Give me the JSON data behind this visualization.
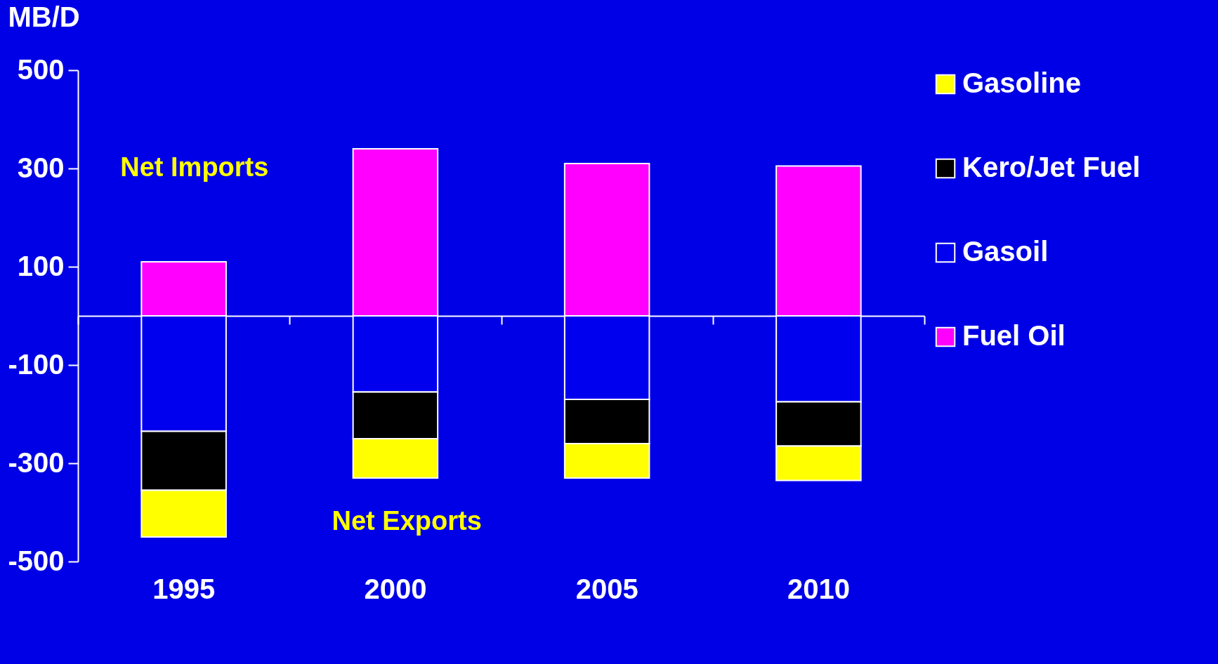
{
  "chart_data": {
    "type": "bar",
    "stacked": true,
    "ylabel": "MB/D",
    "categories": [
      "1995",
      "2000",
      "2005",
      "2010"
    ],
    "series": [
      {
        "name": "Fuel Oil",
        "color": "#ff00ff",
        "values": [
          110,
          340,
          310,
          305
        ]
      },
      {
        "name": "Gasoil",
        "color": "#0000ee",
        "values": [
          -235,
          -155,
          -170,
          -175
        ]
      },
      {
        "name": "Kero/Jet Fuel",
        "color": "#000000",
        "values": [
          -120,
          -95,
          -90,
          -90
        ]
      },
      {
        "name": "Gasoline",
        "color": "#ffff00",
        "values": [
          -95,
          -80,
          -70,
          -70
        ]
      }
    ],
    "ylim": [
      -500,
      500
    ],
    "yticks": [
      500,
      300,
      100,
      -100,
      -300,
      -500
    ],
    "grid": false,
    "legend": "right",
    "annotations": [
      "Net Imports",
      "Net Exports"
    ]
  }
}
